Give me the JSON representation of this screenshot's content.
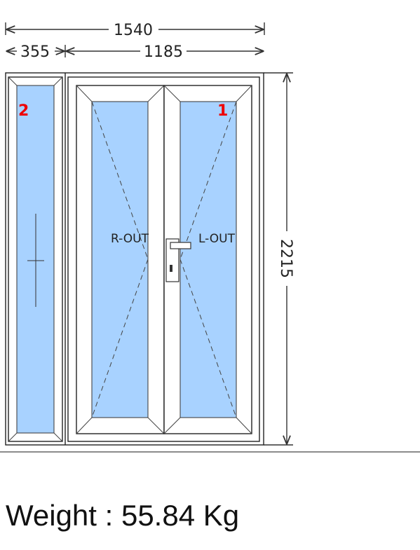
{
  "dimensions": {
    "total_width": "1540",
    "fixed_width": "355",
    "door_width": "1185",
    "height": "2215"
  },
  "sashes": [
    {
      "number": "2",
      "type": "fixed",
      "opening_label": ""
    },
    {
      "number": "",
      "type": "door-leaf",
      "opening_label": "R-OUT"
    },
    {
      "number": "1",
      "type": "door-leaf",
      "opening_label": "L-OUT"
    }
  ],
  "weight": {
    "label": "Weight : 55.84 Kg"
  },
  "colors": {
    "glass": "#a8d2ff",
    "frame": "#ffffff",
    "outline": "#222222",
    "sash_number": "#ee0000",
    "ground_line": "#666666"
  },
  "icons": {
    "handle": "door-handle-icon",
    "fixed_marker": "fixed-glass-cross-icon"
  }
}
